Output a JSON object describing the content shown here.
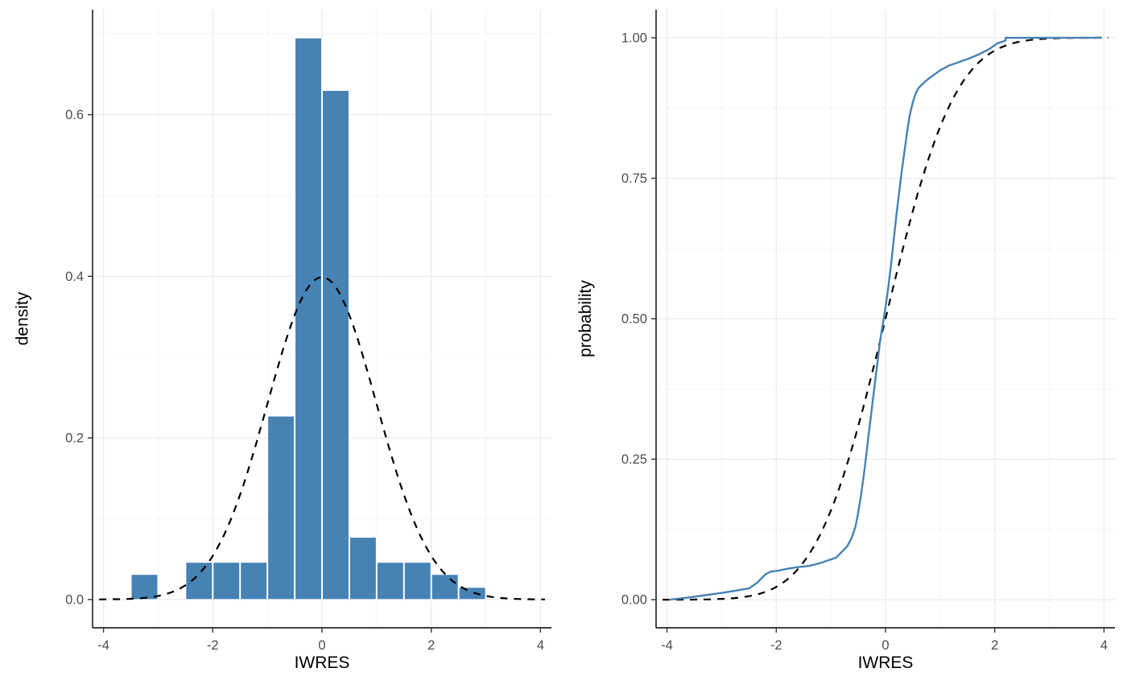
{
  "figure": {
    "background": "#FFFFFF",
    "panel_background": "#FFFFFF",
    "grid_major_color": "#EBEBEB",
    "grid_minor_color": "#F5F5F5",
    "axis_line_color": "#000000",
    "tick_color": "#333333",
    "tick_label_color": "#4D4D4D",
    "axis_title_color": "#000000",
    "bar_color": "#4682B4",
    "line_color": "#4682B4",
    "reference_color": "#000000"
  },
  "chart_data": [
    {
      "type": "bar",
      "subtype": "histogram-with-normal-density-overlay",
      "title": "",
      "xlabel": "IWRES",
      "ylabel": "density",
      "xlim": [
        -4.2,
        4.2
      ],
      "ylim": [
        -0.035,
        0.73
      ],
      "x_ticks": [
        -4,
        -2,
        0,
        2,
        4
      ],
      "x_minor": [
        -3,
        -1,
        1,
        3
      ],
      "y_ticks": [
        0,
        0.2,
        0.4,
        0.6
      ],
      "y_tick_labels": [
        "0.0",
        "0.2",
        "0.4",
        "0.6"
      ],
      "y_minor": [
        0.1,
        0.3,
        0.5,
        0.7
      ],
      "grid": true,
      "legend": "none",
      "bins": [
        {
          "x0": -3.5,
          "x1": -3.0,
          "density": 0.031
        },
        {
          "x0": -2.5,
          "x1": -2.0,
          "density": 0.046
        },
        {
          "x0": -2.0,
          "x1": -1.5,
          "density": 0.046
        },
        {
          "x0": -1.5,
          "x1": -1.0,
          "density": 0.046
        },
        {
          "x0": -1.0,
          "x1": -0.5,
          "density": 0.227
        },
        {
          "x0": -0.5,
          "x1": 0.0,
          "density": 0.695
        },
        {
          "x0": 0.0,
          "x1": 0.5,
          "density": 0.63
        },
        {
          "x0": 0.5,
          "x1": 1.0,
          "density": 0.077
        },
        {
          "x0": 1.0,
          "x1": 1.5,
          "density": 0.046
        },
        {
          "x0": 1.5,
          "x1": 2.0,
          "density": 0.046
        },
        {
          "x0": 2.0,
          "x1": 2.5,
          "density": 0.031
        },
        {
          "x0": 2.5,
          "x1": 3.0,
          "density": 0.015
        }
      ],
      "overlay": {
        "type": "normal-density",
        "mean": 0,
        "sd": 1,
        "peak": 0.399,
        "linestyle": "dashed"
      }
    },
    {
      "type": "line",
      "subtype": "ecdf-with-normal-cdf-overlay",
      "title": "",
      "xlabel": "IWRES",
      "ylabel": "probability",
      "xlim": [
        -4.2,
        4.2
      ],
      "ylim": [
        -0.05,
        1.05
      ],
      "x_ticks": [
        -4,
        -2,
        0,
        2,
        4
      ],
      "x_minor": [
        -3,
        -1,
        1,
        3
      ],
      "y_ticks": [
        0,
        0.25,
        0.5,
        0.75,
        1
      ],
      "y_tick_labels": [
        "0.00",
        "0.25",
        "0.50",
        "0.75",
        "1.00"
      ],
      "y_minor": [
        0.125,
        0.375,
        0.625,
        0.875
      ],
      "grid": true,
      "legend": "none",
      "ecdf": {
        "x": [
          -3.95,
          -3.6,
          -3.3,
          -3.0,
          -2.75,
          -2.5,
          -2.35,
          -2.2,
          -2.1,
          -1.95,
          -1.8,
          -1.6,
          -1.4,
          -1.2,
          -1.05,
          -0.9,
          -0.8,
          -0.7,
          -0.62,
          -0.55,
          -0.5,
          -0.45,
          -0.4,
          -0.35,
          -0.3,
          -0.25,
          -0.2,
          -0.15,
          -0.1,
          -0.05,
          0.0,
          0.05,
          0.1,
          0.15,
          0.2,
          0.25,
          0.3,
          0.35,
          0.4,
          0.45,
          0.5,
          0.55,
          0.6,
          0.7,
          0.8,
          0.9,
          1.0,
          1.15,
          1.3,
          1.5,
          1.7,
          1.9,
          2.05,
          2.2,
          2.2,
          3.0,
          3.95
        ],
        "p": [
          0.0,
          0.004,
          0.008,
          0.012,
          0.016,
          0.02,
          0.03,
          0.045,
          0.05,
          0.052,
          0.055,
          0.058,
          0.06,
          0.065,
          0.07,
          0.075,
          0.085,
          0.095,
          0.11,
          0.13,
          0.155,
          0.185,
          0.22,
          0.26,
          0.3,
          0.34,
          0.38,
          0.42,
          0.46,
          0.49,
          0.52,
          0.555,
          0.595,
          0.64,
          0.685,
          0.725,
          0.765,
          0.8,
          0.835,
          0.865,
          0.885,
          0.9,
          0.91,
          0.92,
          0.928,
          0.935,
          0.942,
          0.95,
          0.955,
          0.962,
          0.97,
          0.98,
          0.99,
          0.995,
          1.0,
          1.0,
          1.0
        ]
      },
      "overlay": {
        "type": "normal-cdf",
        "mean": 0,
        "sd": 1,
        "linestyle": "dashed"
      }
    }
  ]
}
